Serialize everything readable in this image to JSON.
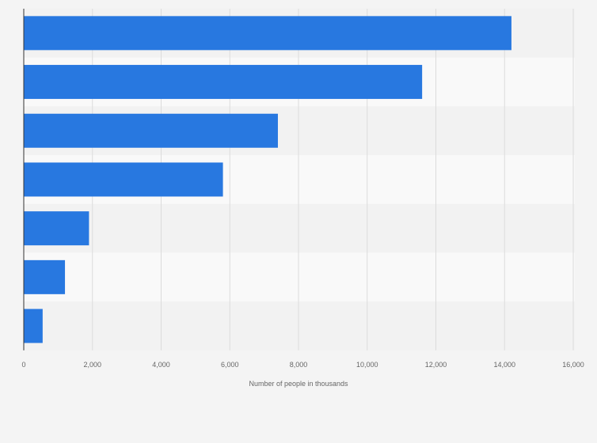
{
  "chart_data": {
    "type": "bar",
    "orientation": "horizontal",
    "categories": [
      "",
      "",
      "",
      "",
      "",
      "",
      ""
    ],
    "values": [
      14200,
      11600,
      7400,
      5800,
      1900,
      1200,
      550
    ],
    "xlabel": "Number of people in thousands",
    "ylabel": "",
    "xlim": [
      0,
      16000
    ],
    "ticks": [
      "0",
      "2,000",
      "4,000",
      "6,000",
      "8,000",
      "10,000",
      "12,000",
      "14,000",
      "16,000"
    ],
    "tick_values": [
      0,
      2000,
      4000,
      6000,
      8000,
      10000,
      12000,
      14000,
      16000
    ],
    "grid": "vertical",
    "legend": "none"
  },
  "colors": {
    "bar": "#2878e0",
    "background": "#f4f4f4",
    "band_light": "#f9f9f9",
    "band_dark": "#f2f2f2",
    "grid": "#dcdcdc",
    "axis": "#333333"
  }
}
